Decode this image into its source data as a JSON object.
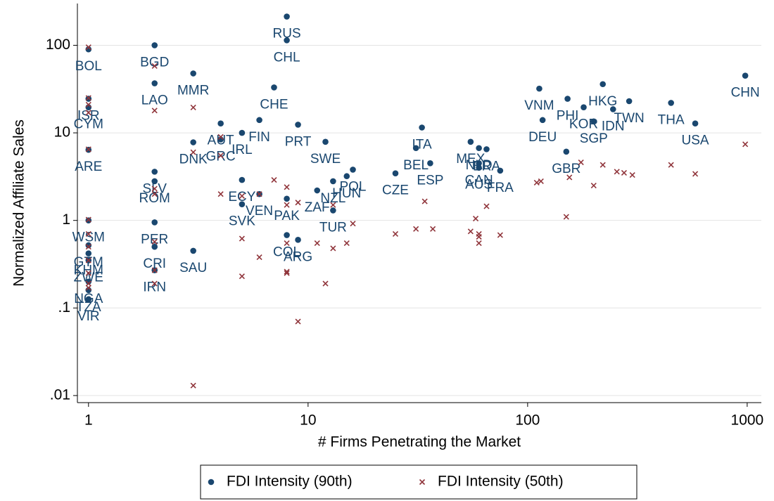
{
  "chart_data": {
    "type": "scatter",
    "x_label": "# Firms Penetrating the Market",
    "y_label": "Normalized Affiliate Sales",
    "xlog": true,
    "ylog": true,
    "grid": true,
    "legend": "bottom",
    "xlim": [
      0.89,
      1160
    ],
    "xticks": [
      1,
      10,
      100,
      1000
    ],
    "ylim": [
      0.0083,
      300
    ],
    "yticks": [
      {
        "value": 0.01,
        "label": ".01"
      },
      {
        "value": 0.1,
        "label": ".1"
      },
      1,
      10,
      100
    ],
    "series": [
      {
        "name": "FDI Intensity (90th)",
        "color": "#1a476f",
        "marker": "dot",
        "labels": [
          "BOL",
          "ISR",
          "CYM",
          "ARE",
          "WSM",
          "GTM",
          "KHM",
          "ZWE",
          "NGA",
          "TZA",
          "VIR",
          "BGD",
          "LAO",
          "SLV",
          "ROM",
          "PER",
          "CRI",
          "IRN",
          "MMR",
          "SAU",
          "DNK",
          "AUT",
          "GRC",
          "IRL",
          "ECY",
          "SVK",
          "VEN",
          "FIN",
          "CHE",
          "RUS",
          "CHL",
          "PAK",
          "COL",
          "PRT",
          "ARG",
          "SWE",
          "ZAF",
          "NZL",
          "TUR",
          "HUN",
          "POL",
          "CZE",
          "ITA",
          "BEL",
          "ESP",
          "MEX",
          "NLD",
          "CAN",
          "AUS",
          "BRA",
          "FRA",
          "VNM",
          "DEU",
          "GBR",
          "PHI",
          "KOR",
          "SGP",
          "HKG",
          "IDN",
          "TWN",
          "THA",
          "USA",
          "CHN"
        ],
        "x": [
          1,
          1,
          1,
          1,
          1,
          1,
          1,
          1,
          1,
          1,
          1,
          2,
          2,
          2,
          2,
          2,
          2,
          2,
          3,
          3,
          3,
          4,
          4,
          5,
          5,
          5,
          6,
          6,
          7,
          8,
          8,
          8,
          8,
          9,
          9,
          12,
          11,
          13,
          13,
          15,
          16,
          25,
          33,
          31,
          36,
          55,
          60,
          60,
          60,
          65,
          75,
          113,
          117,
          150,
          152,
          180,
          200,
          220,
          245,
          290,
          450,
          580,
          980
        ],
        "y": [
          90,
          24.5,
          19.6,
          6.4,
          1.0,
          0.52,
          0.42,
          0.35,
          0.2,
          0.16,
          0.126,
          100,
          36.8,
          3.6,
          2.8,
          0.95,
          0.5,
          0.27,
          47.7,
          0.45,
          7.8,
          12.8,
          8.4,
          10,
          2.9,
          1.53,
          2.0,
          14,
          33,
          213,
          114,
          1.77,
          0.68,
          12.4,
          0.6,
          7.9,
          2.2,
          2.8,
          1.3,
          3.2,
          3.8,
          3.45,
          11.5,
          6.7,
          4.5,
          7.9,
          6.7,
          4.5,
          4.0,
          6.5,
          3.7,
          32,
          14,
          6.1,
          24.5,
          19.6,
          13.5,
          36,
          18.6,
          23,
          22,
          12.8,
          45
        ]
      },
      {
        "name": "FDI Intensity (50th)",
        "color": "#90353b",
        "marker": "x",
        "x": [
          1,
          1,
          1,
          1,
          1,
          1,
          1,
          1,
          1,
          1,
          1,
          1,
          2,
          2,
          2,
          2,
          2,
          2,
          2,
          3,
          3,
          3,
          4,
          4,
          4,
          5,
          5,
          5,
          6,
          6,
          7,
          8,
          8,
          8,
          8,
          8,
          9,
          9,
          11,
          12,
          13,
          13,
          15,
          16,
          25,
          31,
          34,
          37,
          55,
          58,
          60,
          60,
          60,
          65,
          75,
          110,
          115,
          150,
          155,
          175,
          200,
          220,
          255,
          275,
          300,
          450,
          580,
          980
        ],
        "y": [
          95,
          25,
          21,
          17,
          6.5,
          1.02,
          0.7,
          0.5,
          0.35,
          0.25,
          0.19,
          0.17,
          58,
          18,
          2.3,
          2.0,
          0.57,
          0.27,
          0.19,
          19.5,
          6,
          0.013,
          9,
          5.5,
          2,
          0.62,
          0.23,
          1.9,
          2,
          0.38,
          2.9,
          2.4,
          1.5,
          0.55,
          0.26,
          0.25,
          1.6,
          0.07,
          0.55,
          0.19,
          0.48,
          1.5,
          0.55,
          0.92,
          0.7,
          0.8,
          1.65,
          0.8,
          0.75,
          1.05,
          0.7,
          0.65,
          0.55,
          1.45,
          0.68,
          2.7,
          2.8,
          1.1,
          3.1,
          4.6,
          2.5,
          4.3,
          3.6,
          3.5,
          3.3,
          4.3,
          3.4,
          7.4
        ]
      }
    ]
  }
}
